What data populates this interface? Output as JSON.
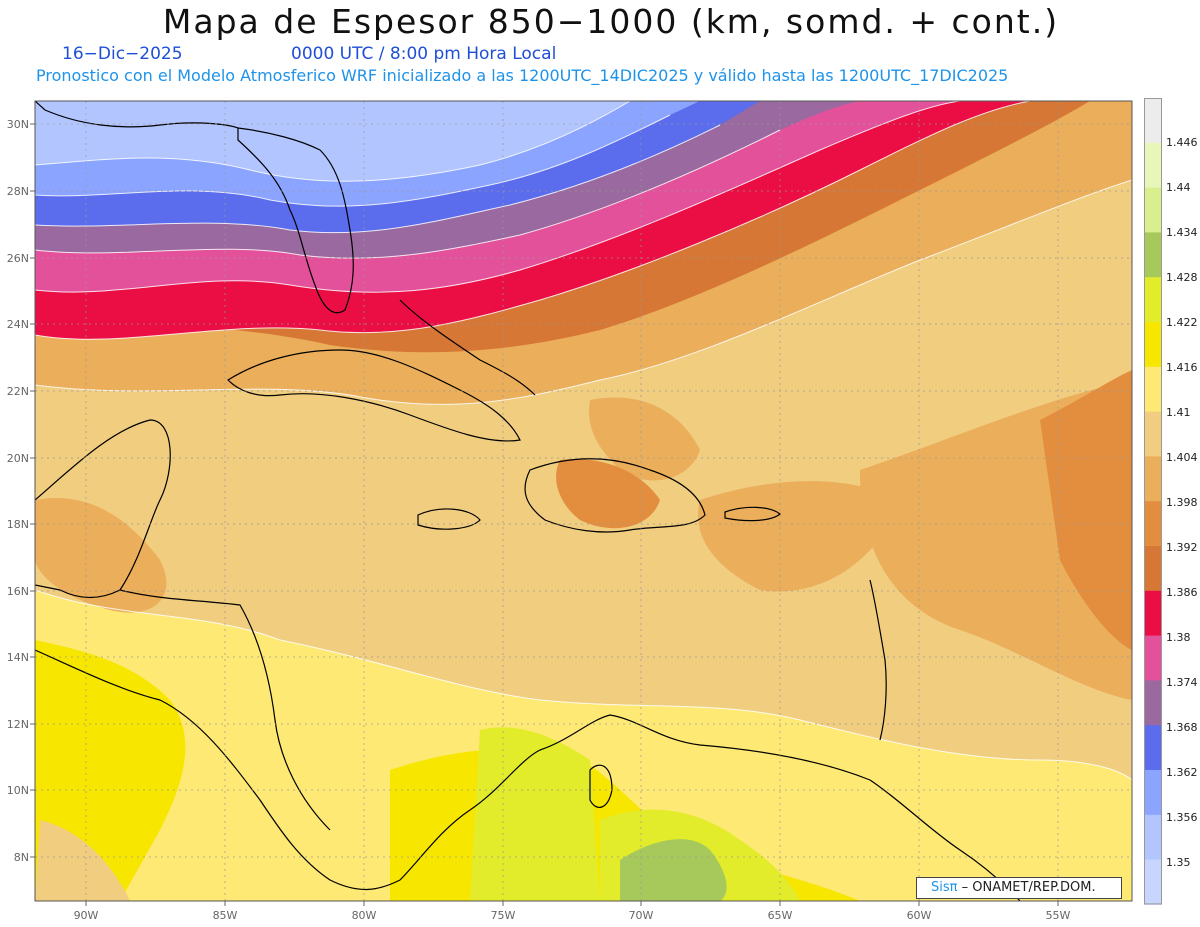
{
  "header": {
    "title": "Mapa de Espesor 850−1000 (km, somd. + cont.)",
    "date": "16−Dic−2025",
    "time": "0000 UTC / 8:00 pm Hora Local",
    "subtitle": "Pronostico con el Modelo Atmosferico WRF inicializado a las 1200UTC_14DIC2025 y válido hasta las  1200UTC_17DIC2025"
  },
  "map": {
    "lat_labels": [
      "30N",
      "28N",
      "26N",
      "24N",
      "22N",
      "20N",
      "18N",
      "16N",
      "14N",
      "12N",
      "10N",
      "8N"
    ],
    "lon_labels": [
      "90W",
      "85W",
      "80W",
      "75W",
      "70W",
      "65W",
      "60W",
      "55W"
    ],
    "features": [
      "Florida",
      "Cuba",
      "Jamaica",
      "Hispaniola",
      "Puerto Rico",
      "Bahamas",
      "Lesser Antilles",
      "Central America",
      "Yucatan",
      "South America coast"
    ]
  },
  "colorbar": {
    "labels": [
      "1.446",
      "1.44",
      "1.434",
      "1.428",
      "1.422",
      "1.416",
      "1.41",
      "1.404",
      "1.398",
      "1.392",
      "1.386",
      "1.38",
      "1.374",
      "1.368",
      "1.362",
      "1.356",
      "1.35"
    ],
    "colors": [
      "#ececec",
      "#e9f6b9",
      "#d9ef8e",
      "#a7c95c",
      "#e2ec2a",
      "#f7e600",
      "#fde973",
      "#f1cd80",
      "#ebae5b",
      "#e38e3f",
      "#d67735",
      "#ea0e45",
      "#e4519b",
      "#9a699f",
      "#5b6ded",
      "#8aa4ff",
      "#b3c5ff",
      "#c8d5ff"
    ]
  },
  "credit": {
    "logo": "Sisπ",
    "text": "– ONAMET/REP.DOM."
  }
}
